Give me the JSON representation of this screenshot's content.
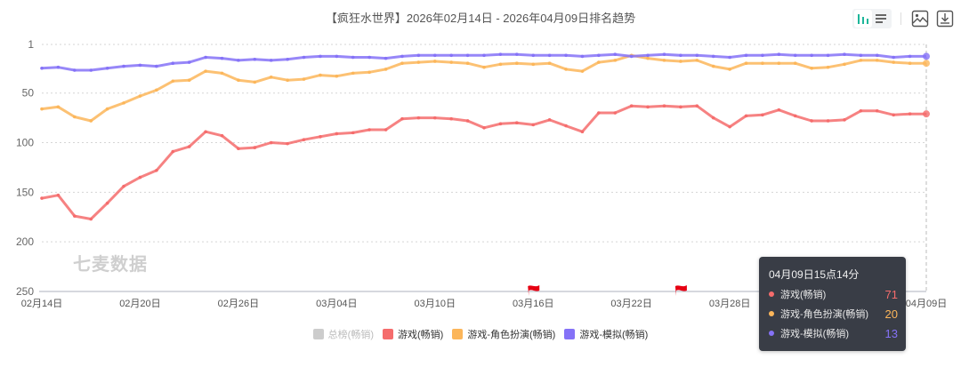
{
  "title": "【疯狂水世界】2026年02月14日 - 2026年04月09日排名趋势",
  "toolbar": {
    "chart_mode_line": "bar-chart-icon",
    "chart_mode_list": "list-icon",
    "save_image": "image-icon",
    "download": "download-icon"
  },
  "watermark": "七麦数据",
  "colors": {
    "total": "#cccccc",
    "game": "#f56c6c",
    "rpg": "#fcb65a",
    "sim": "#8572f7",
    "tooltip_bg": "#393d46"
  },
  "legend": [
    {
      "label": "总榜(畅销)",
      "color": "#cccccc",
      "active": false
    },
    {
      "label": "游戏(畅销)",
      "color": "#f56c6c",
      "active": true
    },
    {
      "label": "游戏-角色扮演(畅销)",
      "color": "#fcb65a",
      "active": true
    },
    {
      "label": "游戏-模拟(畅销)",
      "color": "#8572f7",
      "active": true
    }
  ],
  "tooltip": {
    "title": "04月09日15点14分",
    "rows": [
      {
        "label": "游戏(畅销)",
        "value": "71",
        "color": "#f56c6c"
      },
      {
        "label": "游戏-角色扮演(畅销)",
        "value": "20",
        "color": "#fcb65a"
      },
      {
        "label": "游戏-模拟(畅销)",
        "value": "13",
        "color": "#8572f7"
      }
    ]
  },
  "chart_data": {
    "type": "line",
    "title": "【疯狂水世界】2026年02月14日 - 2026年04月09日排名趋势",
    "xlabel": "",
    "ylabel": "",
    "ylim": [
      1,
      250
    ],
    "y_inverted": true,
    "yticks": [
      "1",
      "50",
      "100",
      "150",
      "200",
      "250"
    ],
    "xticks": [
      "02月14日",
      "02月20日",
      "02月26日",
      "03月04日",
      "03月10日",
      "03月16日",
      "03月22日",
      "03月28日",
      "04月03日",
      "04月09日"
    ],
    "grid": true,
    "legend_position": "bottom",
    "x": [
      "02-14",
      "02-15",
      "02-16",
      "02-17",
      "02-18",
      "02-19",
      "02-20",
      "02-21",
      "02-22",
      "02-23",
      "02-24",
      "02-25",
      "02-26",
      "02-27",
      "02-28",
      "03-01",
      "03-02",
      "03-03",
      "03-04",
      "03-05",
      "03-06",
      "03-07",
      "03-08",
      "03-09",
      "03-10",
      "03-11",
      "03-12",
      "03-13",
      "03-14",
      "03-15",
      "03-16",
      "03-17",
      "03-18",
      "03-19",
      "03-20",
      "03-21",
      "03-22",
      "03-23",
      "03-24",
      "03-25",
      "03-26",
      "03-27",
      "03-28",
      "03-29",
      "03-30",
      "03-31",
      "04-01",
      "04-02",
      "04-03",
      "04-04",
      "04-05",
      "04-06",
      "04-07",
      "04-08",
      "04-09"
    ],
    "series": [
      {
        "name": "游戏(畅销)",
        "color": "#f56c6c",
        "values": [
          156,
          153,
          174,
          177,
          161,
          144,
          135,
          128,
          109,
          104,
          89,
          93,
          106,
          105,
          100,
          101,
          97,
          94,
          91,
          90,
          87,
          87,
          76,
          75,
          75,
          76,
          78,
          85,
          81,
          80,
          82,
          77,
          83,
          89,
          70,
          70,
          63,
          64,
          63,
          64,
          63,
          75,
          84,
          73,
          72,
          67,
          73,
          78,
          78,
          77,
          68,
          68,
          72,
          71,
          71
        ]
      },
      {
        "name": "游戏-角色扮演(畅销)",
        "color": "#fcb65a",
        "values": [
          66,
          64,
          74,
          78,
          66,
          60,
          53,
          47,
          38,
          37,
          28,
          30,
          37,
          39,
          34,
          37,
          36,
          32,
          33,
          30,
          29,
          26,
          20,
          19,
          18,
          19,
          20,
          24,
          21,
          20,
          21,
          20,
          26,
          28,
          19,
          17,
          12,
          15,
          17,
          18,
          17,
          23,
          26,
          20,
          20,
          20,
          20,
          25,
          24,
          21,
          17,
          17,
          19,
          20,
          20
        ]
      },
      {
        "name": "游戏-模拟(畅销)",
        "color": "#8572f7",
        "values": [
          25,
          24,
          27,
          27,
          25,
          23,
          22,
          23,
          20,
          19,
          14,
          15,
          17,
          16,
          17,
          16,
          14,
          13,
          13,
          14,
          14,
          15,
          13,
          12,
          12,
          12,
          12,
          12,
          11,
          11,
          12,
          12,
          12,
          13,
          12,
          11,
          13,
          12,
          11,
          12,
          12,
          13,
          14,
          12,
          12,
          11,
          12,
          12,
          12,
          11,
          12,
          12,
          14,
          13,
          13
        ]
      },
      {
        "name": "总榜(畅销)",
        "color": "#cccccc",
        "values": [],
        "hidden": true
      }
    ],
    "markers": [
      {
        "type": "flag",
        "x": "03-16",
        "color": "#e60012"
      },
      {
        "type": "flag",
        "x": "03-25",
        "color": "#e60012"
      }
    ]
  }
}
